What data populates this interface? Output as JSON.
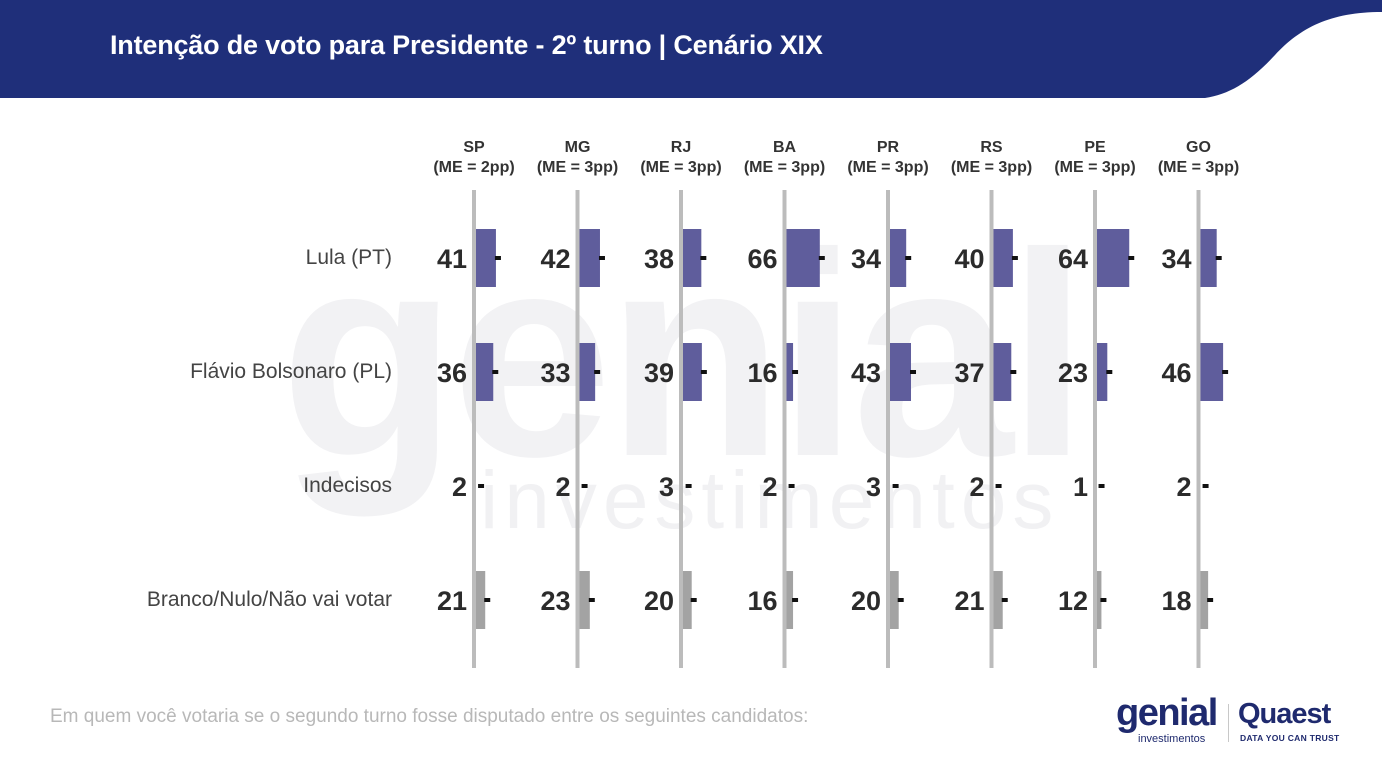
{
  "header": {
    "title": "Intenção de voto para Presidente - 2º turno | Cenário XIX",
    "colors": {
      "band": "#1f2f7a",
      "text": "#ffffff"
    }
  },
  "footnote": "Em quem você votaria se o segundo turno fosse disputado entre os seguintes candidatos:",
  "logos": {
    "genial": {
      "main": "genial",
      "sub": "investimentos"
    },
    "quaest": {
      "main": "Quaest",
      "sub": "DATA YOU CAN TRUST"
    }
  },
  "watermark": {
    "main": "genial",
    "sub": "investimentos"
  },
  "chart_data": {
    "type": "bar",
    "orientation": "horizontal",
    "panels": [
      {
        "state": "SP",
        "me": "(ME = 2pp)",
        "margin_pp": 2,
        "values": [
          41,
          36,
          2,
          21
        ]
      },
      {
        "state": "MG",
        "me": "(ME = 3pp)",
        "margin_pp": 3,
        "values": [
          42,
          33,
          2,
          23
        ]
      },
      {
        "state": "RJ",
        "me": "(ME = 3pp)",
        "margin_pp": 3,
        "values": [
          38,
          39,
          3,
          20
        ]
      },
      {
        "state": "BA",
        "me": "(ME = 3pp)",
        "margin_pp": 3,
        "values": [
          66,
          16,
          2,
          16
        ]
      },
      {
        "state": "PR",
        "me": "(ME = 3pp)",
        "margin_pp": 3,
        "values": [
          34,
          43,
          3,
          20
        ]
      },
      {
        "state": "RS",
        "me": "(ME = 3pp)",
        "margin_pp": 3,
        "values": [
          40,
          37,
          2,
          21
        ]
      },
      {
        "state": "PE",
        "me": "(ME = 3pp)",
        "margin_pp": 3,
        "values": [
          64,
          23,
          1,
          12
        ]
      },
      {
        "state": "GO",
        "me": "(ME = 3pp)",
        "margin_pp": 3,
        "values": [
          34,
          46,
          2,
          18
        ]
      }
    ],
    "categories": [
      "Lula (PT)",
      "Flávio Bolsonaro (PL)",
      "Indecisos",
      "Branco/Nulo/Não vai votar"
    ],
    "category_colors": [
      "#5f5d9c",
      "#5f5d9c",
      "#5f5d9c",
      "#a3a3a3"
    ],
    "axis_color": "#bcbcbc",
    "error_marker_color": "#111111",
    "value_label_color": "#2b2b2b",
    "xlim": [
      0,
      100
    ]
  }
}
